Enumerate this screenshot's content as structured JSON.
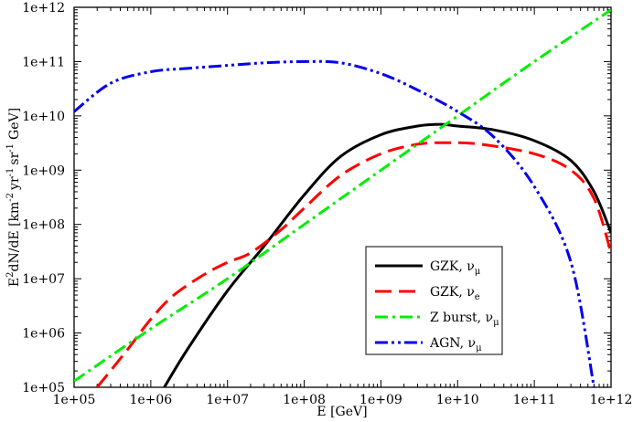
{
  "chart_data": {
    "type": "line",
    "title": "",
    "xlabel": "E [GeV]",
    "ylabel": {
      "e": "E",
      "e_sup": "2",
      "mid": "dN/dE [km",
      "km_sup": "-2",
      "yr": "yr",
      "yr_sup": "-1",
      "sr": "sr",
      "sr_sup": "-1",
      "gev": "GeV]"
    },
    "xscale": "log",
    "yscale": "log",
    "xlim": [
      100000,
      1000000000000
    ],
    "ylim": [
      100000,
      1000000000000
    ],
    "x_tick_labels": [
      "1e+05",
      "1e+06",
      "1e+07",
      "1e+08",
      "1e+09",
      "1e+10",
      "1e+11",
      "1e+12"
    ],
    "y_tick_labels": [
      "1e+05",
      "1e+06",
      "1e+07",
      "1e+08",
      "1e+09",
      "1e+10",
      "1e+11",
      "1e+12"
    ],
    "grid": false,
    "legend_position": "lower-right",
    "series": [
      {
        "name": "GZK, ν_μ",
        "label_main": "GZK, ν",
        "label_sub": "μ",
        "color": "#000000",
        "style": "solid",
        "x": [
          1500000.0,
          3000000.0,
          10000000.0,
          30000000.0,
          100000000.0,
          300000000.0,
          1000000000.0,
          3000000000.0,
          6000000000.0,
          10000000000.0,
          30000000000.0,
          100000000000.0,
          300000000000.0,
          600000000000.0,
          1000000000000.0
        ],
        "y": [
          100000.0,
          500000.0,
          6000000.0,
          40000000.0,
          350000000.0,
          1800000000.0,
          4500000000.0,
          6500000000.0,
          7000000000.0,
          6500000000.0,
          5500000000.0,
          3500000000.0,
          1500000000.0,
          400000000.0,
          70000000.0
        ]
      },
      {
        "name": "GZK, ν_e",
        "label_main": "GZK, ν",
        "label_sub": "e",
        "color": "#ff0000",
        "style": "dashed",
        "x": [
          200000.0,
          500000.0,
          1000000.0,
          2000000.0,
          5000000.0,
          10000000.0,
          20000000.0,
          50000000.0,
          100000000.0,
          300000000.0,
          1000000000.0,
          3000000000.0,
          7000000000.0,
          20000000000.0,
          100000000000.0,
          300000000000.0,
          600000000000.0,
          1000000000000.0
        ],
        "y": [
          100000.0,
          500000.0,
          1800000.0,
          5000000.0,
          12000000.0,
          20000000.0,
          30000000.0,
          80000000.0,
          200000000.0,
          800000000.0,
          2000000000.0,
          3000000000.0,
          3200000000.0,
          3000000000.0,
          2000000000.0,
          1000000000.0,
          300000000.0,
          30000000.0
        ]
      },
      {
        "name": "Z burst, ν_μ",
        "label_main": "Z burst, ν",
        "label_sub": "μ",
        "color": "#00ee00",
        "style": "dash-dot",
        "x": [
          100000.0,
          1000000.0,
          10000000.0,
          100000000.0,
          1000000000.0,
          10000000000.0,
          100000000000.0,
          1000000000000.0
        ],
        "y": [
          130000.0,
          1200000.0,
          10000000.0,
          100000000.0,
          1000000000.0,
          10000000000.0,
          100000000000.0,
          900000000000.0
        ]
      },
      {
        "name": "AGN, ν_μ",
        "label_main": "AGN, ν",
        "label_sub": "μ",
        "color": "#0000ee",
        "style": "dash-dot-dot",
        "x": [
          100000.0,
          300000.0,
          1000000.0,
          3000000.0,
          10000000.0,
          30000000.0,
          100000000.0,
          300000000.0,
          1000000000.0,
          3000000000.0,
          10000000000.0,
          30000000000.0,
          100000000000.0,
          300000000000.0,
          600000000000.0
        ],
        "y": [
          12000000000.0,
          40000000000.0,
          65000000000.0,
          75000000000.0,
          85000000000.0,
          95000000000.0,
          100000000000.0,
          95000000000.0,
          60000000000.0,
          30000000000.0,
          12000000000.0,
          4000000000.0,
          500000000.0,
          20000000.0,
          100000.0
        ]
      }
    ]
  }
}
